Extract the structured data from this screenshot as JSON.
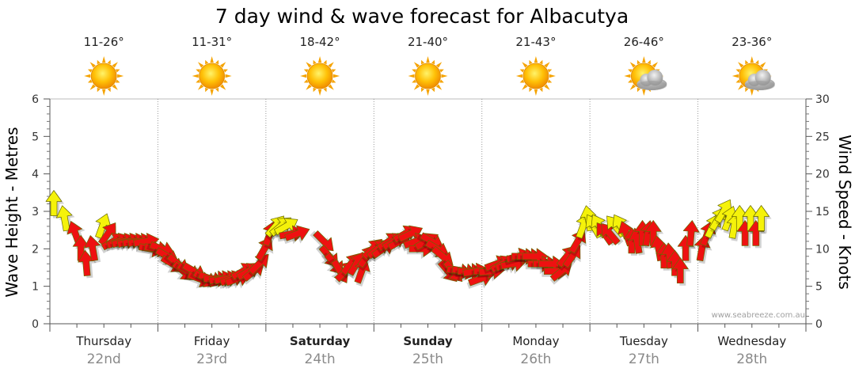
{
  "chart_data": {
    "type": "line",
    "title": "7 day wind & wave forecast for Albacutya",
    "ylabel_left": "Wave Height - Metres",
    "ylabel_right": "Wind Speed - Knots",
    "ylim_left": [
      0,
      6
    ],
    "ylim_right": [
      0,
      30
    ],
    "yticks_left": [
      "0",
      "1",
      "2",
      "3",
      "4",
      "5",
      "6"
    ],
    "yticks_right": [
      "0",
      "5",
      "10",
      "15",
      "20",
      "25",
      "30"
    ],
    "grid": true,
    "credit": "www.seabreeze.com.au",
    "colors": {
      "light_wind": "#f5f20a",
      "strong_wind": "#ee1111",
      "grid": "#999999"
    },
    "days": [
      {
        "name": "Thursday",
        "date": "22nd",
        "temp": "11-26°",
        "weather": "sun-icon",
        "bold": false
      },
      {
        "name": "Friday",
        "date": "23rd",
        "temp": "11-31°",
        "weather": "sun-icon",
        "bold": false
      },
      {
        "name": "Saturday",
        "date": "24th",
        "temp": "18-42°",
        "weather": "sun-icon",
        "bold": true
      },
      {
        "name": "Sunday",
        "date": "25th",
        "temp": "21-40°",
        "weather": "sun-icon",
        "bold": true
      },
      {
        "name": "Monday",
        "date": "26th",
        "temp": "21-43°",
        "weather": "sun-icon",
        "bold": false
      },
      {
        "name": "Tuesday",
        "date": "27th",
        "temp": "26-46°",
        "weather": "partly-cloudy-icon",
        "bold": false
      },
      {
        "name": "Wednesday",
        "date": "28th",
        "temp": "23-36°",
        "weather": "partly-cloudy-icon",
        "bold": false
      }
    ],
    "wind_unit": "knots",
    "wind_series": [
      [
        0.0,
        16,
        180
      ],
      [
        0.1,
        14,
        170
      ],
      [
        0.2,
        12,
        160
      ],
      [
        0.25,
        10,
        180
      ],
      [
        0.3,
        8,
        175
      ],
      [
        0.36,
        10,
        170
      ],
      [
        0.45,
        13,
        200
      ],
      [
        0.5,
        12,
        215
      ],
      [
        0.55,
        11,
        240
      ],
      [
        0.6,
        11,
        250
      ],
      [
        0.65,
        11,
        255
      ],
      [
        0.7,
        11,
        255
      ],
      [
        0.75,
        11,
        260
      ],
      [
        0.8,
        11,
        260
      ],
      [
        0.85,
        11,
        260
      ],
      [
        0.9,
        10,
        280
      ],
      [
        0.95,
        10,
        280
      ],
      [
        1.0,
        10,
        290
      ],
      [
        1.05,
        9,
        300
      ],
      [
        1.1,
        8,
        300
      ],
      [
        1.15,
        8,
        310
      ],
      [
        1.2,
        7,
        310
      ],
      [
        1.25,
        7,
        300
      ],
      [
        1.3,
        7,
        300
      ],
      [
        1.35,
        6,
        290
      ],
      [
        1.4,
        6,
        300
      ],
      [
        1.45,
        6,
        290
      ],
      [
        1.5,
        6,
        270
      ],
      [
        1.55,
        6,
        260
      ],
      [
        1.6,
        6,
        260
      ],
      [
        1.65,
        6,
        250
      ],
      [
        1.7,
        6,
        250
      ],
      [
        1.75,
        7,
        240
      ],
      [
        1.8,
        7,
        240
      ],
      [
        1.85,
        7,
        230
      ],
      [
        1.9,
        8,
        225
      ],
      [
        1.95,
        10,
        210
      ],
      [
        2.0,
        12,
        200
      ],
      [
        2.05,
        13,
        220
      ],
      [
        2.1,
        13,
        230
      ],
      [
        2.15,
        13,
        240
      ],
      [
        2.2,
        12,
        260
      ],
      [
        2.25,
        12,
        250
      ],
      [
        2.5,
        11,
        315
      ],
      [
        2.55,
        9,
        320
      ],
      [
        2.6,
        8,
        320
      ],
      [
        2.65,
        7,
        330
      ],
      [
        2.7,
        7,
        225
      ],
      [
        2.75,
        8,
        220
      ],
      [
        2.8,
        8,
        210
      ],
      [
        2.85,
        7,
        200
      ],
      [
        2.9,
        9,
        215
      ],
      [
        2.95,
        10,
        225
      ],
      [
        3.0,
        10,
        230
      ],
      [
        3.05,
        10,
        235
      ],
      [
        3.1,
        11,
        235
      ],
      [
        3.15,
        11,
        240
      ],
      [
        3.2,
        11,
        240
      ],
      [
        3.25,
        12,
        240
      ],
      [
        3.3,
        12,
        245
      ],
      [
        3.35,
        11,
        250
      ],
      [
        3.4,
        10,
        270
      ],
      [
        3.45,
        11,
        240
      ],
      [
        3.5,
        11,
        300
      ],
      [
        3.55,
        10,
        300
      ],
      [
        3.6,
        9,
        310
      ],
      [
        3.65,
        7,
        320
      ],
      [
        3.7,
        7,
        320
      ],
      [
        3.75,
        7,
        280
      ],
      [
        3.8,
        7,
        280
      ],
      [
        3.85,
        7,
        270
      ],
      [
        3.9,
        7,
        260
      ],
      [
        3.95,
        6,
        250
      ],
      [
        4.0,
        7,
        270
      ],
      [
        4.05,
        7,
        265
      ],
      [
        4.1,
        8,
        250
      ],
      [
        4.15,
        8,
        240
      ],
      [
        4.2,
        8,
        250
      ],
      [
        4.25,
        8,
        260
      ],
      [
        4.3,
        9,
        255
      ],
      [
        4.35,
        9,
        270
      ],
      [
        4.4,
        9,
        270
      ],
      [
        4.45,
        9,
        270
      ],
      [
        4.5,
        8,
        270
      ],
      [
        4.55,
        8,
        270
      ],
      [
        4.6,
        8,
        270
      ],
      [
        4.65,
        7,
        270
      ],
      [
        4.7,
        7,
        230
      ],
      [
        4.75,
        9,
        220
      ],
      [
        4.8,
        9,
        215
      ],
      [
        4.85,
        11,
        210
      ],
      [
        4.9,
        13,
        200
      ],
      [
        4.95,
        14,
        170
      ],
      [
        5.0,
        13,
        150
      ],
      [
        5.05,
        13,
        150
      ],
      [
        5.1,
        12,
        145
      ],
      [
        5.15,
        12,
        140
      ],
      [
        5.2,
        13,
        140
      ],
      [
        5.25,
        13,
        150
      ],
      [
        5.3,
        12,
        160
      ],
      [
        5.35,
        11,
        180
      ],
      [
        5.4,
        11,
        170
      ],
      [
        5.45,
        12,
        180
      ],
      [
        5.5,
        12,
        190
      ],
      [
        5.55,
        12,
        180
      ],
      [
        5.6,
        10,
        170
      ],
      [
        5.65,
        9,
        180
      ],
      [
        5.7,
        9,
        175
      ],
      [
        5.75,
        8,
        180
      ],
      [
        5.8,
        7,
        180
      ],
      [
        5.85,
        10,
        180
      ],
      [
        5.9,
        12,
        185
      ],
      [
        6.0,
        10,
        190
      ],
      [
        6.05,
        12,
        200
      ],
      [
        6.1,
        13,
        205
      ],
      [
        6.15,
        14,
        210
      ],
      [
        6.2,
        15,
        210
      ],
      [
        6.25,
        14,
        200
      ],
      [
        6.3,
        13,
        190
      ],
      [
        6.35,
        14,
        180
      ],
      [
        6.4,
        12,
        180
      ],
      [
        6.45,
        14,
        180
      ],
      [
        6.5,
        12,
        180
      ],
      [
        6.55,
        14,
        180
      ]
    ]
  }
}
